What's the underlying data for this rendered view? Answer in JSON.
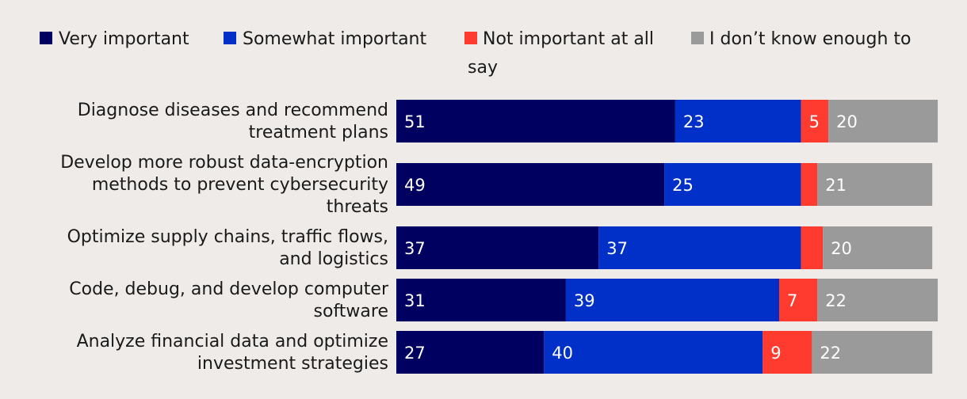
{
  "chart_data": {
    "type": "bar",
    "orientation": "horizontal",
    "stacked": true,
    "title": "",
    "xlabel": "",
    "ylabel": "",
    "xlim": [
      0,
      100
    ],
    "grid": false,
    "legend_position": "top",
    "categories": [
      [
        "Diagnose diseases and recommend",
        "treatment plans"
      ],
      [
        "Develop more robust data-encryption",
        "methods to prevent cybersecurity",
        "threats"
      ],
      [
        "Optimize supply chains, traffic flows,",
        "and logistics"
      ],
      [
        "Code, debug, and develop computer",
        "software"
      ],
      [
        "Analyze financial data and optimize",
        "investment strategies"
      ]
    ],
    "series": [
      {
        "name": "Very important",
        "color": "#000060",
        "values": [
          51,
          49,
          37,
          31,
          27
        ],
        "labels": [
          "51",
          "49",
          "37",
          "31",
          "27"
        ]
      },
      {
        "name": "Somewhat important",
        "color": "#0030c8",
        "values": [
          23,
          25,
          37,
          39,
          40
        ],
        "labels": [
          "23",
          "25",
          "37",
          "39",
          "40"
        ]
      },
      {
        "name": "Not important at all",
        "color": "#ff3b30",
        "values": [
          5,
          3,
          4,
          7,
          9
        ],
        "labels": [
          "5",
          "",
          "",
          "7",
          "9"
        ]
      },
      {
        "name": "I don’t know enough to say",
        "color": "#9a9a9a",
        "values": [
          20,
          21,
          20,
          22,
          22
        ],
        "labels": [
          "20",
          "21",
          "20",
          "22",
          "22"
        ]
      }
    ]
  }
}
